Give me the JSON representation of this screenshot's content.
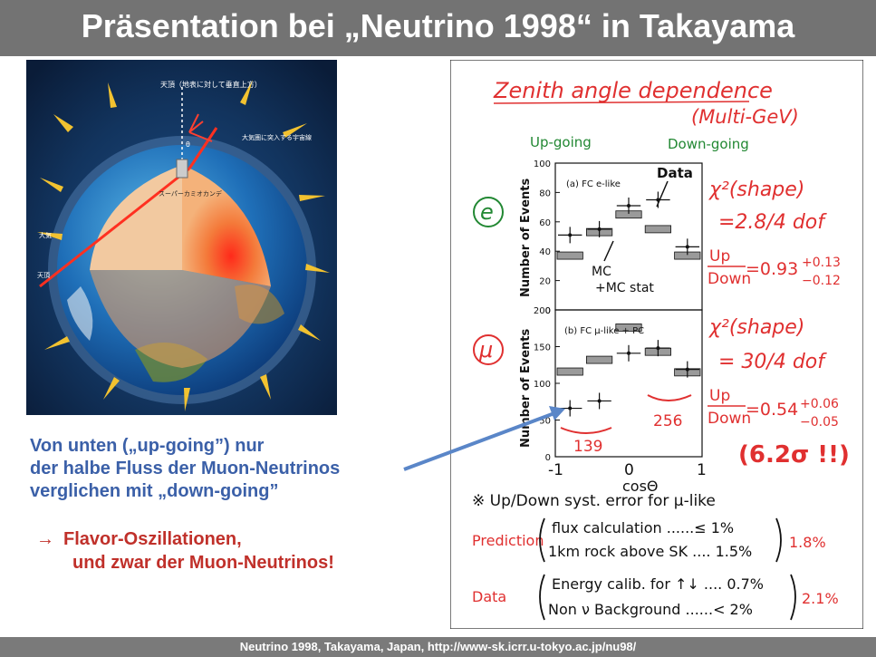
{
  "slide": {
    "title": "Präsentation bei „Neutrino 1998“ in Takayama",
    "footer": "Neutrino 1998, Takayama, Japan, http://www-sk.icrr.u-tokyo.ac.jp/nu98/"
  },
  "left_text": {
    "line1": "Von unten („up-going”) nur",
    "line2": "der halbe Fluss der Muon-Neutrinos",
    "line3": "verglichen mit „down-going”",
    "arrow_symbol": "→",
    "conclusion1": "Flavor-Oszillationen,",
    "conclusion2": "und zwar der Muon-Neutrinos!"
  },
  "earth_figure": {
    "label_zenith": "天頂（地表に対して垂直上方）",
    "label_cosmic": "大気圏に突入する宇宙線",
    "label_sk": "スーパーカミオカンデ",
    "label_path": "ニュートリノ飛程",
    "label_atmos": "大気",
    "label_nadir": "天頂",
    "theta": "θ"
  },
  "handwritten_note": {
    "title": "Zenith angle dependence",
    "subtitle": "(Multi-GeV)",
    "up_going": "Up-going",
    "down_going": "Down-going",
    "electron_symbol": "e",
    "muon_symbol": "μ",
    "data_label": "Data",
    "mc_label_1": "MC",
    "mc_label_2": "+MC stat",
    "e_chi2": "χ²(shape)",
    "e_chi2_value": "=2.8/4 dof",
    "e_updown_num": "Up",
    "e_updown_den": "Down",
    "e_ratio": "=0.93",
    "e_err_plus": "+0.13",
    "e_err_minus": "−0.12",
    "mu_chi2": "χ²(shape)",
    "mu_chi2_value": "= 30/4 dof",
    "mu_updown_num": "Up",
    "mu_updown_den": "Down",
    "mu_ratio": "=0.54",
    "mu_err_plus": "+0.06",
    "mu_err_minus": "−0.05",
    "significance": "(6.2σ !!)",
    "count_up": "139",
    "count_down": "256",
    "syst_note": "※ Up/Down syst. error for μ-like",
    "prediction_label": "Prediction",
    "pred_line1": "flux calculation ......≤ 1%",
    "pred_line2": "1km rock above SK .... 1.5%",
    "pred_total": "1.8%",
    "data_label2": "Data",
    "data_line1": "Energy calib. for ↑↓ .... 0.7%",
    "data_line2": "Non ν Background ......< 2%",
    "data_total": "2.1%",
    "xaxis_left": "-1",
    "xaxis_mid": "0",
    "xaxis_right": "1",
    "xaxis_label": "cosΘ"
  },
  "chart_data": [
    {
      "type": "scatter",
      "title": "(a) FC e-like",
      "xlabel": "",
      "ylabel": "Number of Events",
      "xlim": [
        -1,
        1
      ],
      "ylim": [
        0,
        100
      ],
      "yticks": [
        0,
        20,
        40,
        60,
        80,
        100
      ],
      "series": [
        {
          "name": "Data",
          "x": [
            -0.8,
            -0.4,
            0.0,
            0.4,
            0.8
          ],
          "values": [
            51,
            55,
            71,
            75,
            43
          ]
        },
        {
          "name": "MC",
          "x": [
            -0.8,
            -0.4,
            0.0,
            0.4,
            0.8
          ],
          "values": [
            37,
            53,
            65,
            55,
            37
          ]
        }
      ]
    },
    {
      "type": "scatter",
      "title": "(b) FC μ-like + PC",
      "xlabel": "",
      "ylabel": "Number of Events",
      "xlim": [
        -1,
        1
      ],
      "ylim": [
        0,
        200
      ],
      "yticks": [
        0,
        50,
        100,
        150,
        200
      ],
      "series": [
        {
          "name": "Data",
          "x": [
            -0.8,
            -0.4,
            0.0,
            0.4,
            0.8
          ],
          "values": [
            66,
            76,
            141,
            148,
            119
          ]
        },
        {
          "name": "MC",
          "x": [
            -0.8,
            -0.4,
            0.0,
            0.4,
            0.8
          ],
          "values": [
            116,
            132,
            176,
            143,
            115
          ]
        }
      ]
    }
  ],
  "colors": {
    "title_bar": "#737373",
    "blue_text": "#3b60a8",
    "red_text": "#c0302a",
    "hand_red": "#e03030",
    "hand_green": "#228833",
    "ink": "#111111"
  }
}
